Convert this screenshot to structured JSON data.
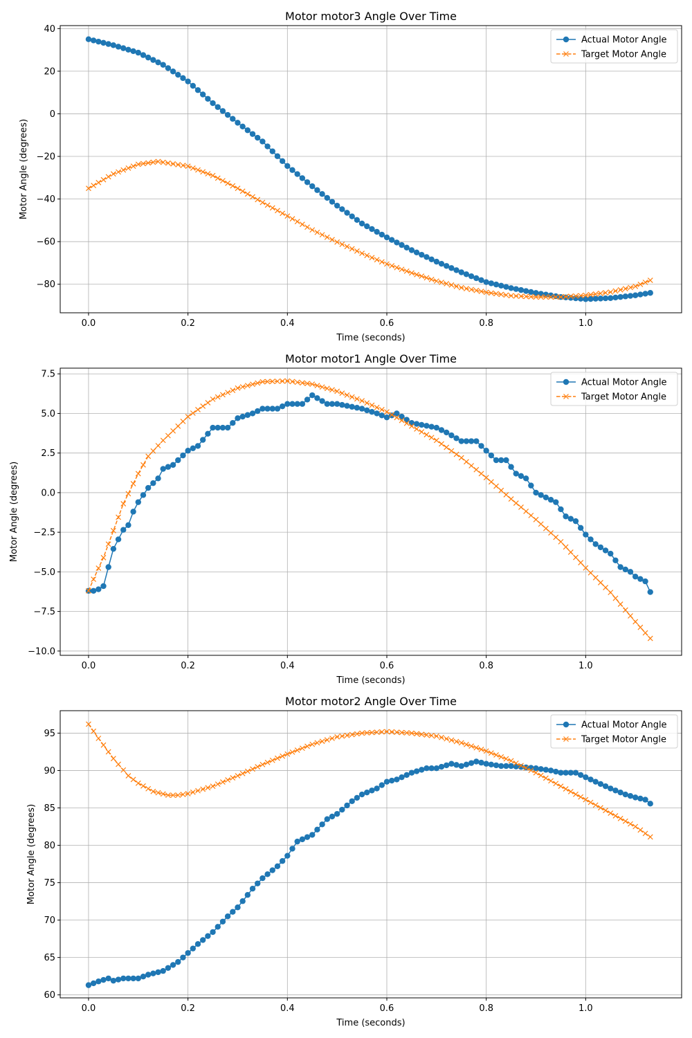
{
  "figure": {
    "legend_labels": [
      "Actual Motor Angle",
      "Target Motor Angle"
    ]
  },
  "colors": {
    "actual": "#1f77b4",
    "target": "#ff7f0e",
    "grid": "#b0b0b0"
  },
  "chart_data": [
    {
      "type": "line",
      "title": "Motor motor3 Angle Over Time",
      "xlabel": "Time (seconds)",
      "ylabel": "Motor Angle (degrees)",
      "xlim": [
        -0.057,
        1.193
      ],
      "ylim": [
        -93.4,
        41.4
      ],
      "xticks": [
        0.0,
        0.2,
        0.4,
        0.6,
        0.8,
        1.0
      ],
      "xtick_labels": [
        "0.0",
        "0.2",
        "0.4",
        "0.6",
        "0.8",
        "1.0"
      ],
      "yticks": [
        -80,
        -60,
        -40,
        -20,
        0,
        20,
        40
      ],
      "ytick_labels": [
        "−80",
        "−60",
        "−40",
        "−20",
        "0",
        "20",
        "40"
      ],
      "grid": true,
      "legend": "top-right",
      "x_start": 0.0,
      "x_step": 0.01,
      "n_points": 114,
      "series": [
        {
          "name": "Actual Motor Angle",
          "marker": "circle",
          "linestyle": "solid",
          "points": [
            [
              0.0,
              35
            ],
            [
              0.05,
              32.2
            ],
            [
              0.1,
              28.7
            ],
            [
              0.15,
              23
            ],
            [
              0.2,
              15.2
            ],
            [
              0.25,
              5
            ],
            [
              0.3,
              -4.2
            ],
            [
              0.35,
              -13
            ],
            [
              0.4,
              -24.5
            ],
            [
              0.45,
              -34
            ],
            [
              0.5,
              -43.1
            ],
            [
              0.55,
              -51.5
            ],
            [
              0.6,
              -58
            ],
            [
              0.65,
              -64
            ],
            [
              0.7,
              -69.4
            ],
            [
              0.75,
              -74.4
            ],
            [
              0.8,
              -79
            ],
            [
              0.85,
              -81.8
            ],
            [
              0.9,
              -84.1
            ],
            [
              0.95,
              -86
            ],
            [
              1.0,
              -87
            ],
            [
              1.05,
              -86.5
            ],
            [
              1.1,
              -85.2
            ],
            [
              1.137,
              -83.8
            ]
          ]
        },
        {
          "name": "Target Motor Angle",
          "marker": "x",
          "linestyle": "dashed",
          "points": [
            [
              0.0,
              -35
            ],
            [
              0.05,
              -28.2
            ],
            [
              0.1,
              -23.7
            ],
            [
              0.14,
              -22.4
            ],
            [
              0.2,
              -24.6
            ],
            [
              0.25,
              -29
            ],
            [
              0.3,
              -35
            ],
            [
              0.35,
              -41.6
            ],
            [
              0.4,
              -48
            ],
            [
              0.45,
              -54.5
            ],
            [
              0.5,
              -60.2
            ],
            [
              0.55,
              -65.5
            ],
            [
              0.6,
              -70.5
            ],
            [
              0.65,
              -74.7
            ],
            [
              0.7,
              -78.5
            ],
            [
              0.75,
              -81.6
            ],
            [
              0.8,
              -83.8
            ],
            [
              0.85,
              -85.4
            ],
            [
              0.9,
              -86
            ],
            [
              0.95,
              -86
            ],
            [
              1.0,
              -85.2
            ],
            [
              1.05,
              -83.7
            ],
            [
              1.1,
              -81
            ],
            [
              1.137,
              -77.5
            ]
          ]
        }
      ]
    },
    {
      "type": "line",
      "title": "Motor motor1 Angle Over Time",
      "xlabel": "Time (seconds)",
      "ylabel": "Motor Angle (degrees)",
      "xlim": [
        -0.057,
        1.193
      ],
      "ylim": [
        -10.27,
        7.86
      ],
      "xticks": [
        0.0,
        0.2,
        0.4,
        0.6,
        0.8,
        1.0
      ],
      "xtick_labels": [
        "0.0",
        "0.2",
        "0.4",
        "0.6",
        "0.8",
        "1.0"
      ],
      "yticks": [
        -10.0,
        -7.5,
        -5.0,
        -2.5,
        0.0,
        2.5,
        5.0,
        7.5
      ],
      "ytick_labels": [
        "−10.0",
        "−7.5",
        "−5.0",
        "−2.5",
        "0.0",
        "2.5",
        "5.0",
        "7.5"
      ],
      "grid": true,
      "legend": "top-right",
      "x_start": 0.0,
      "x_step": 0.01,
      "n_points": 114,
      "series": [
        {
          "name": "Actual Motor Angle",
          "marker": "circle",
          "linestyle": "solid",
          "points": [
            [
              0.0,
              -6.2
            ],
            [
              0.015,
              -6.2
            ],
            [
              0.03,
              -5.9
            ],
            [
              0.04,
              -4.7
            ],
            [
              0.05,
              -3.55
            ],
            [
              0.06,
              -2.95
            ],
            [
              0.07,
              -2.35
            ],
            [
              0.08,
              -2.05
            ],
            [
              0.09,
              -1.2
            ],
            [
              0.1,
              -0.6
            ],
            [
              0.12,
              0.3
            ],
            [
              0.14,
              0.9
            ],
            [
              0.15,
              1.5
            ],
            [
              0.17,
              1.75
            ],
            [
              0.2,
              2.65
            ],
            [
              0.22,
              2.95
            ],
            [
              0.25,
              4.1
            ],
            [
              0.28,
              4.1
            ],
            [
              0.3,
              4.7
            ],
            [
              0.33,
              5.0
            ],
            [
              0.35,
              5.3
            ],
            [
              0.38,
              5.3
            ],
            [
              0.4,
              5.6
            ],
            [
              0.43,
              5.6
            ],
            [
              0.45,
              6.15
            ],
            [
              0.48,
              5.6
            ],
            [
              0.5,
              5.6
            ],
            [
              0.55,
              5.3
            ],
            [
              0.58,
              5.0
            ],
            [
              0.6,
              4.75
            ],
            [
              0.62,
              5.0
            ],
            [
              0.65,
              4.4
            ],
            [
              0.7,
              4.1
            ],
            [
              0.72,
              3.8
            ],
            [
              0.75,
              3.25
            ],
            [
              0.78,
              3.25
            ],
            [
              0.8,
              2.65
            ],
            [
              0.82,
              2.05
            ],
            [
              0.84,
              2.05
            ],
            [
              0.86,
              1.2
            ],
            [
              0.88,
              0.9
            ],
            [
              0.9,
              0.0
            ],
            [
              0.92,
              -0.3
            ],
            [
              0.94,
              -0.6
            ],
            [
              0.96,
              -1.5
            ],
            [
              0.98,
              -1.8
            ],
            [
              1.0,
              -2.65
            ],
            [
              1.02,
              -3.25
            ],
            [
              1.05,
              -3.85
            ],
            [
              1.07,
              -4.7
            ],
            [
              1.09,
              -5.0
            ],
            [
              1.1,
              -5.3
            ],
            [
              1.12,
              -5.6
            ],
            [
              1.127,
              -6.2
            ],
            [
              1.137,
              -6.45
            ]
          ]
        },
        {
          "name": "Target Motor Angle",
          "marker": "x",
          "linestyle": "dashed",
          "points": [
            [
              0.0,
              -6.2
            ],
            [
              0.015,
              -5.1
            ],
            [
              0.03,
              -4.1
            ],
            [
              0.05,
              -2.4
            ],
            [
              0.07,
              -0.7
            ],
            [
              0.1,
              1.2
            ],
            [
              0.12,
              2.3
            ],
            [
              0.15,
              3.3
            ],
            [
              0.2,
              4.8
            ],
            [
              0.25,
              5.9
            ],
            [
              0.3,
              6.6
            ],
            [
              0.35,
              7.0
            ],
            [
              0.4,
              7.05
            ],
            [
              0.45,
              6.85
            ],
            [
              0.5,
              6.4
            ],
            [
              0.55,
              5.8
            ],
            [
              0.6,
              5.1
            ],
            [
              0.65,
              4.2
            ],
            [
              0.7,
              3.3
            ],
            [
              0.75,
              2.2
            ],
            [
              0.8,
              0.95
            ],
            [
              0.85,
              -0.4
            ],
            [
              0.9,
              -1.7
            ],
            [
              0.95,
              -3.1
            ],
            [
              1.0,
              -4.75
            ],
            [
              1.05,
              -6.3
            ],
            [
              1.1,
              -8.15
            ],
            [
              1.137,
              -9.45
            ]
          ]
        }
      ]
    },
    {
      "type": "line",
      "title": "Motor motor2 Angle Over Time",
      "xlabel": "Time (seconds)",
      "ylabel": "Motor Angle (degrees)",
      "xlim": [
        -0.057,
        1.193
      ],
      "ylim": [
        59.6,
        98.0
      ],
      "xticks": [
        0.0,
        0.2,
        0.4,
        0.6,
        0.8,
        1.0
      ],
      "xtick_labels": [
        "0.0",
        "0.2",
        "0.4",
        "0.6",
        "0.8",
        "1.0"
      ],
      "yticks": [
        60,
        65,
        70,
        75,
        80,
        85,
        90,
        95
      ],
      "ytick_labels": [
        "60",
        "65",
        "70",
        "75",
        "80",
        "85",
        "90",
        "95"
      ],
      "grid": true,
      "legend": "top-right",
      "x_start": 0.0,
      "x_step": 0.01,
      "n_points": 114,
      "series": [
        {
          "name": "Actual Motor Angle",
          "marker": "circle",
          "linestyle": "solid",
          "points": [
            [
              0.0,
              61.3
            ],
            [
              0.02,
              61.8
            ],
            [
              0.04,
              62.2
            ],
            [
              0.05,
              61.9
            ],
            [
              0.07,
              62.2
            ],
            [
              0.1,
              62.2
            ],
            [
              0.12,
              62.7
            ],
            [
              0.15,
              63.2
            ],
            [
              0.18,
              64.4
            ],
            [
              0.2,
              65.6
            ],
            [
              0.22,
              66.8
            ],
            [
              0.25,
              68.4
            ],
            [
              0.28,
              70.5
            ],
            [
              0.3,
              71.7
            ],
            [
              0.33,
              74.2
            ],
            [
              0.35,
              75.6
            ],
            [
              0.38,
              77.2
            ],
            [
              0.4,
              78.6
            ],
            [
              0.42,
              80.5
            ],
            [
              0.45,
              81.4
            ],
            [
              0.48,
              83.5
            ],
            [
              0.5,
              84.2
            ],
            [
              0.53,
              85.9
            ],
            [
              0.55,
              86.8
            ],
            [
              0.58,
              87.6
            ],
            [
              0.6,
              88.5
            ],
            [
              0.62,
              88.8
            ],
            [
              0.65,
              89.7
            ],
            [
              0.68,
              90.3
            ],
            [
              0.7,
              90.3
            ],
            [
              0.73,
              90.9
            ],
            [
              0.75,
              90.6
            ],
            [
              0.78,
              91.2
            ],
            [
              0.8,
              90.9
            ],
            [
              0.83,
              90.6
            ],
            [
              0.85,
              90.6
            ],
            [
              0.9,
              90.3
            ],
            [
              0.93,
              90.0
            ],
            [
              0.95,
              89.7
            ],
            [
              0.98,
              89.7
            ],
            [
              1.0,
              89.1
            ],
            [
              1.03,
              88.2
            ],
            [
              1.05,
              87.6
            ],
            [
              1.08,
              86.8
            ],
            [
              1.1,
              86.4
            ],
            [
              1.12,
              86.1
            ],
            [
              1.137,
              85.2
            ]
          ]
        },
        {
          "name": "Target Motor Angle",
          "marker": "x",
          "linestyle": "dashed",
          "points": [
            [
              0.0,
              96.2
            ],
            [
              0.02,
              94.3
            ],
            [
              0.05,
              91.6
            ],
            [
              0.08,
              89.3
            ],
            [
              0.1,
              88.3
            ],
            [
              0.13,
              87.2
            ],
            [
              0.16,
              86.7
            ],
            [
              0.18,
              86.7
            ],
            [
              0.2,
              86.9
            ],
            [
              0.25,
              87.9
            ],
            [
              0.3,
              89.3
            ],
            [
              0.35,
              90.8
            ],
            [
              0.4,
              92.2
            ],
            [
              0.45,
              93.5
            ],
            [
              0.5,
              94.5
            ],
            [
              0.55,
              95.0
            ],
            [
              0.6,
              95.2
            ],
            [
              0.65,
              95.0
            ],
            [
              0.7,
              94.6
            ],
            [
              0.75,
              93.7
            ],
            [
              0.8,
              92.6
            ],
            [
              0.85,
              91.3
            ],
            [
              0.9,
              89.7
            ],
            [
              0.95,
              87.9
            ],
            [
              1.0,
              86.1
            ],
            [
              1.05,
              84.3
            ],
            [
              1.1,
              82.5
            ],
            [
              1.137,
              80.8
            ]
          ]
        }
      ]
    }
  ]
}
